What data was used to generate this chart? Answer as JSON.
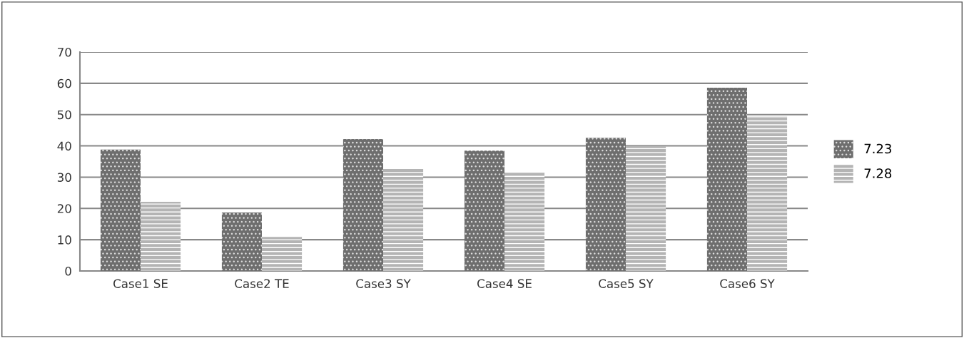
{
  "chart_data": {
    "type": "bar",
    "categories": [
      "Case1 SE",
      "Case2 TE",
      "Case3 SY",
      "Case4 SE",
      "Case5 SY",
      "Case6 SY"
    ],
    "series": [
      {
        "name": "7.23",
        "color": "#6e6e6e",
        "values": [
          38.8,
          18.7,
          42.2,
          38.5,
          42.6,
          58.6
        ]
      },
      {
        "name": "7.28",
        "color": "#b4b4b4",
        "values": [
          22.1,
          10.9,
          32.6,
          31.7,
          39.9,
          49.5
        ]
      }
    ],
    "ylim": [
      0,
      70
    ],
    "yticks": [
      0,
      10,
      20,
      30,
      40,
      50,
      60,
      70
    ],
    "grid": "y",
    "legend": "right"
  }
}
